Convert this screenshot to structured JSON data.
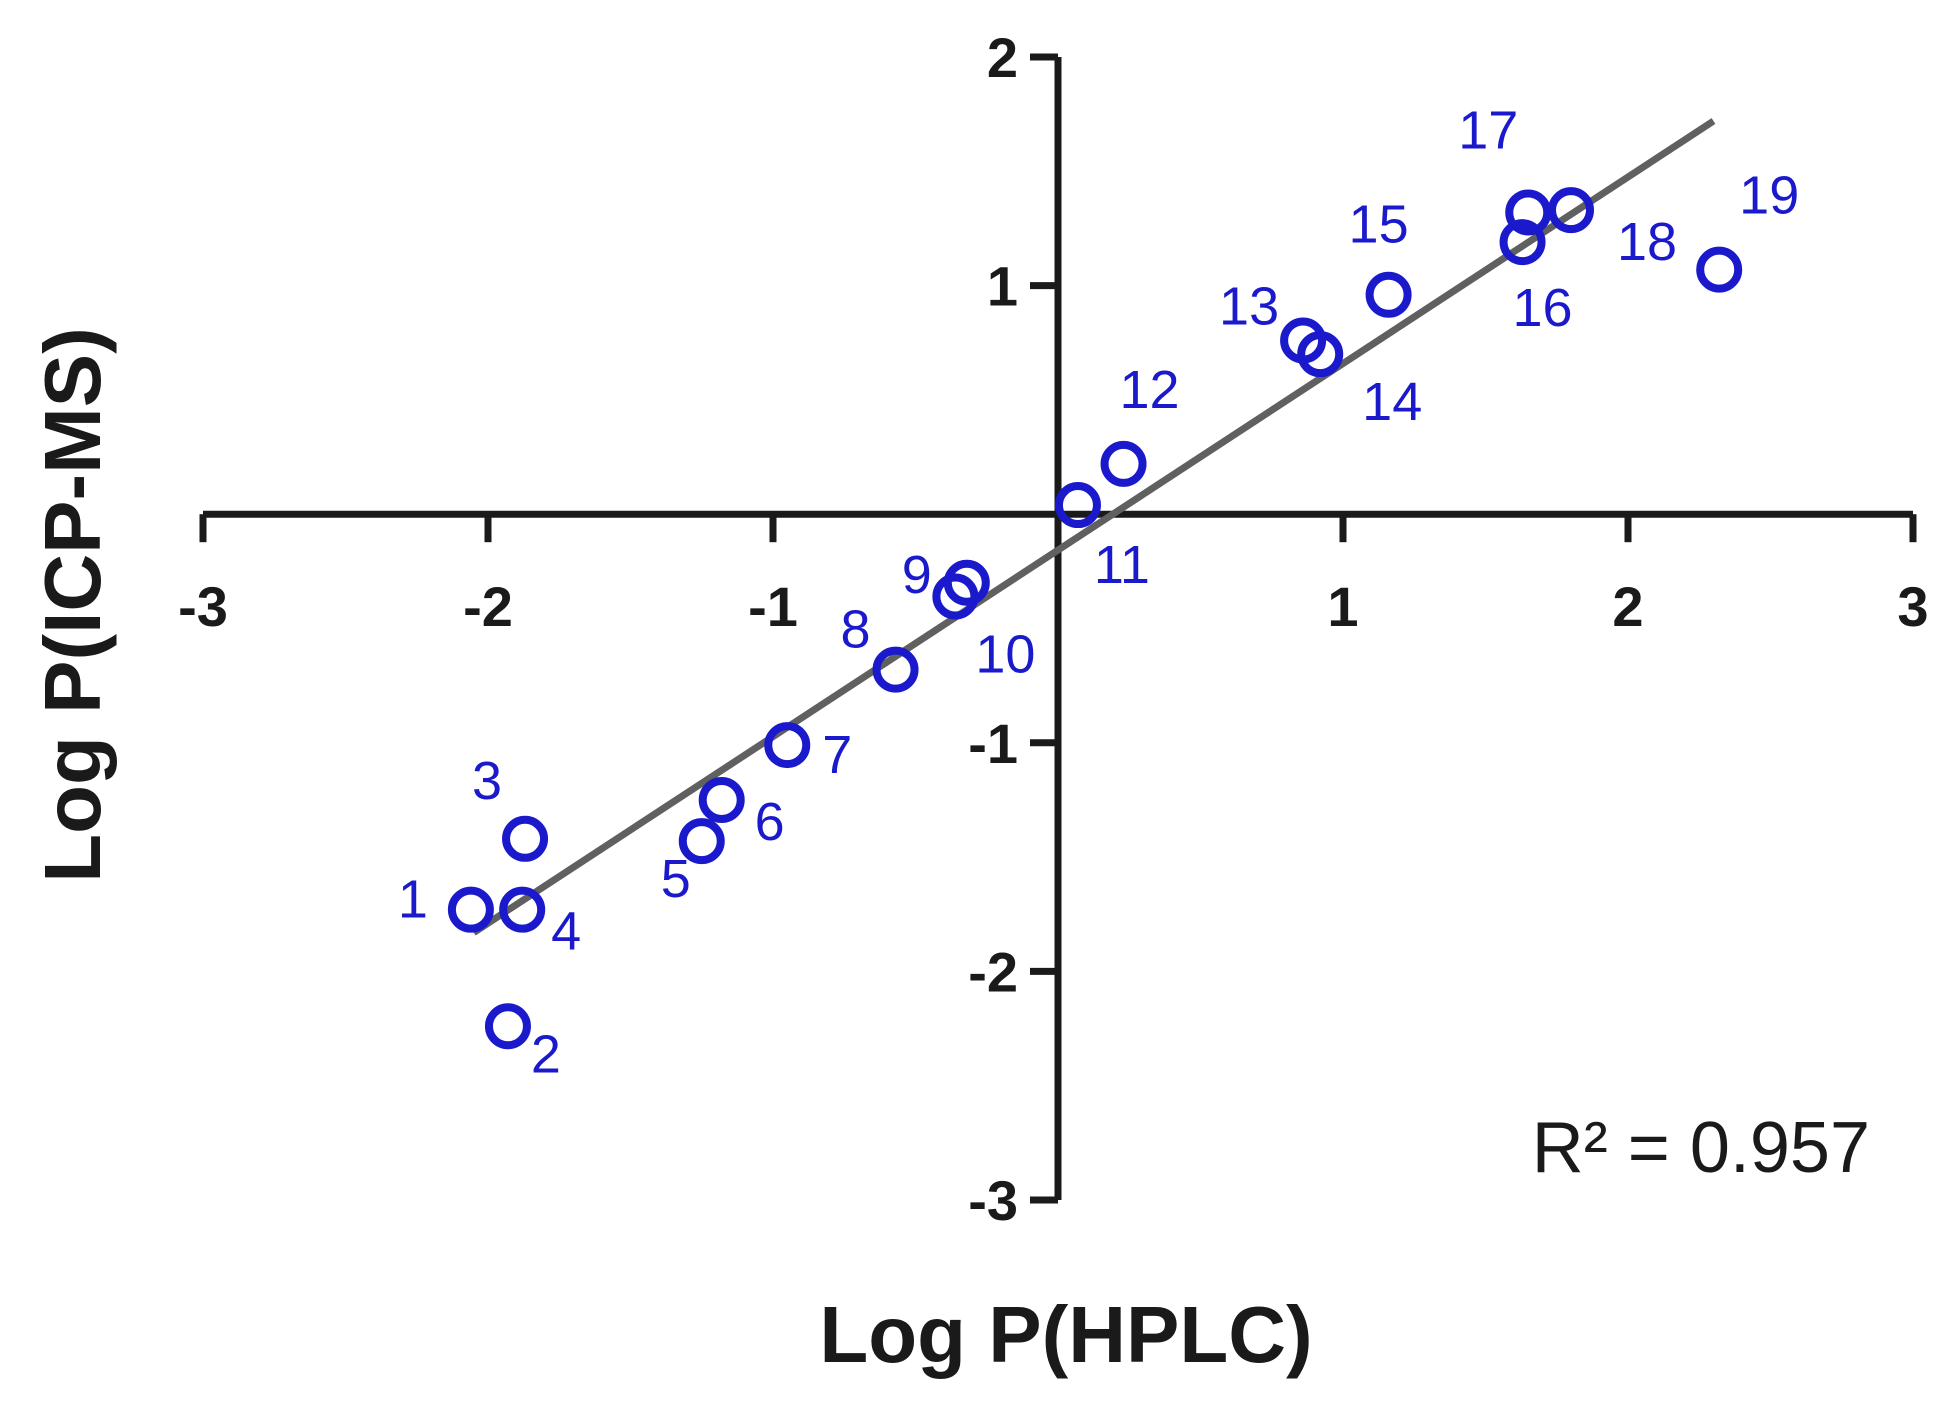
{
  "chart_data": {
    "type": "scatter",
    "title": "",
    "xlabel": "Log P(HPLC)",
    "ylabel": "Log P(ICP-MS)",
    "xlim": [
      -3,
      3
    ],
    "ylim": [
      -3,
      2
    ],
    "x_ticks": [
      -3,
      -2,
      -1,
      1,
      2,
      3
    ],
    "y_ticks": [
      2,
      1,
      -1,
      -2,
      -3
    ],
    "x_tick_labels": [
      "-3",
      "-2",
      "-1",
      "1",
      "2",
      "3"
    ],
    "y_tick_labels": [
      "2",
      "1",
      "-1",
      "-2",
      "-3"
    ],
    "axes_cross_at_origin": true,
    "grid": false,
    "marker": "open-circle",
    "point_color": "#1a1acc",
    "line_color": "#606060",
    "axis_color": "#1a1a1a",
    "points": [
      {
        "label": "1",
        "x": -2.06,
        "y": -1.73
      },
      {
        "label": "2",
        "x": -1.93,
        "y": -2.24
      },
      {
        "label": "3",
        "x": -1.87,
        "y": -1.42
      },
      {
        "label": "4",
        "x": -1.88,
        "y": -1.73
      },
      {
        "label": "5",
        "x": -1.25,
        "y": -1.43
      },
      {
        "label": "6",
        "x": -1.18,
        "y": -1.25
      },
      {
        "label": "7",
        "x": -0.95,
        "y": -1.01
      },
      {
        "label": "8",
        "x": -0.57,
        "y": -0.68
      },
      {
        "label": "9",
        "x": -0.32,
        "y": -0.3
      },
      {
        "label": "10",
        "x": -0.36,
        "y": -0.36
      },
      {
        "label": "11",
        "x": 0.07,
        "y": 0.04
      },
      {
        "label": "12",
        "x": 0.23,
        "y": 0.22
      },
      {
        "label": "13",
        "x": 0.86,
        "y": 0.76
      },
      {
        "label": "14",
        "x": 0.92,
        "y": 0.7
      },
      {
        "label": "15",
        "x": 1.16,
        "y": 0.96
      },
      {
        "label": "16",
        "x": 1.63,
        "y": 1.19
      },
      {
        "label": "17",
        "x": 1.65,
        "y": 1.32
      },
      {
        "label": "18",
        "x": 1.8,
        "y": 1.33
      },
      {
        "label": "19",
        "x": 2.32,
        "y": 1.07
      }
    ],
    "fit_line": {
      "x": [
        -2.05,
        2.3
      ],
      "y": [
        -1.83,
        1.72
      ]
    },
    "annotation": {
      "text": "R² = 0.957"
    }
  }
}
